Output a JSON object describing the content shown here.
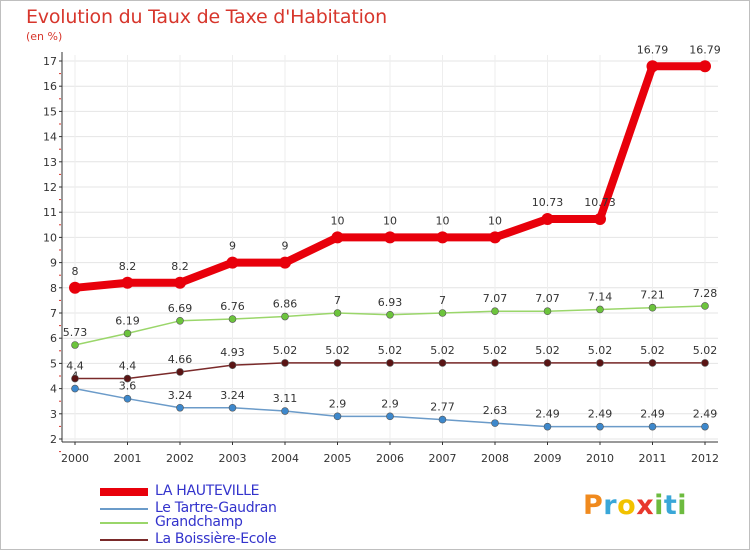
{
  "title": "Evolution du Taux de Taxe d'Habitation",
  "unit_label": "(en %)",
  "brand": {
    "letters": [
      "P",
      "r",
      "o",
      "x",
      "i",
      "t",
      "i"
    ],
    "colors": [
      "#f08a1e",
      "#3aa7d8",
      "#f2c200",
      "#e8382d",
      "#6dbb3f",
      "#3aa7d8",
      "#6dbb3f"
    ]
  },
  "chart_data": {
    "type": "line",
    "title": "Evolution du Taux de Taxe d'Habitation",
    "ylabel": "(en %)",
    "xlabel": "",
    "x": [
      "2000",
      "2001",
      "2002",
      "2003",
      "2004",
      "2005",
      "2006",
      "2007",
      "2008",
      "2009",
      "2010",
      "2011",
      "2012"
    ],
    "ylim": [
      2,
      17
    ],
    "yticks": [
      "2",
      "3",
      "4",
      "5",
      "6",
      "7",
      "8",
      "9",
      "10",
      "11",
      "12",
      "13",
      "14",
      "15",
      "16",
      "17"
    ],
    "grid": true,
    "legend_position": "bottom-left",
    "series": [
      {
        "name": "LA HAUTEVILLE",
        "color": "#e8000b",
        "marker_color": "#e8000b",
        "values": [
          8,
          8.2,
          8.2,
          9,
          9,
          10,
          10,
          10,
          10,
          10.73,
          10.73,
          16.79,
          16.79
        ],
        "labels": [
          "8",
          "8.2",
          "8.2",
          "9",
          "9",
          "10",
          "10",
          "10",
          "10",
          "10.73",
          "10.73",
          "16.79",
          "16.79"
        ]
      },
      {
        "name": "Le Tartre-Gaudran",
        "color": "#6b9bc9",
        "marker_color": "#3d88cc",
        "values": [
          4.0,
          3.6,
          3.24,
          3.24,
          3.11,
          2.9,
          2.9,
          2.77,
          2.63,
          2.49,
          2.49,
          2.49,
          2.49
        ],
        "labels": [
          "4",
          "3.6",
          "3.24",
          "3.24",
          "3.11",
          "2.9",
          "2.9",
          "2.77",
          "2.63",
          "2.49",
          "2.49",
          "2.49",
          "2.49"
        ]
      },
      {
        "name": "Grandchamp",
        "color": "#9ad66a",
        "marker_color": "#6cc43c",
        "values": [
          5.73,
          6.19,
          6.69,
          6.76,
          6.86,
          7,
          6.93,
          7,
          7.07,
          7.07,
          7.14,
          7.21,
          7.28
        ],
        "labels": [
          "5.73",
          "6.19",
          "6.69",
          "6.76",
          "6.86",
          "7",
          "6.93",
          "7",
          "7.07",
          "7.07",
          "7.14",
          "7.21",
          "7.28"
        ]
      },
      {
        "name": "La Boissière-Ecole",
        "color": "#7a2a2a",
        "marker_color": "#5a1414",
        "values": [
          4.4,
          4.4,
          4.66,
          4.93,
          5.02,
          5.02,
          5.02,
          5.02,
          5.02,
          5.02,
          5.02,
          5.02,
          5.02
        ],
        "labels": [
          "4.4",
          "4.4",
          "4.66",
          "4.93",
          "5.02",
          "5.02",
          "5.02",
          "5.02",
          "5.02",
          "5.02",
          "5.02",
          "5.02",
          "5.02"
        ]
      }
    ]
  }
}
